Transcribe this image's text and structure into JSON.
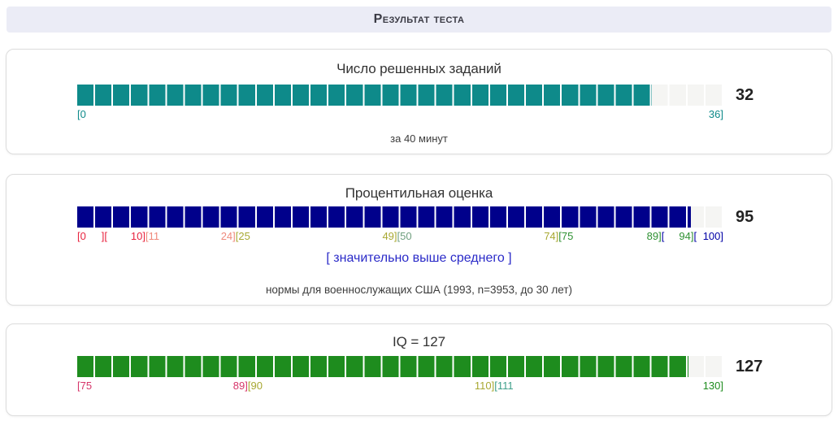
{
  "header": {
    "title": "Результат теста"
  },
  "panels": [
    {
      "id": "tasks",
      "title": "Число решенных заданий",
      "value": "32",
      "bar": {
        "fill_percent": 88.89,
        "fill_color": "#0e8a8a",
        "empty_color": "#f5f5f3",
        "segments": 36
      },
      "scale": [
        {
          "pos": 0,
          "anchor": "left",
          "parts": [
            {
              "text": "[0",
              "color": "#0e8a8a"
            }
          ]
        },
        {
          "pos": 100,
          "anchor": "right",
          "parts": [
            {
              "text": "36]",
              "color": "#0e8a8a"
            }
          ]
        }
      ],
      "footnote": "за 40 минут"
    },
    {
      "id": "percentile",
      "title": "Процентильная оценка",
      "value": "95",
      "bar": {
        "fill_percent": 95,
        "fill_color": "#00008b",
        "empty_color": "#f5f5f3",
        "segments": 36
      },
      "scale": [
        {
          "pos": 0,
          "anchor": "left",
          "parts": [
            {
              "text": "[0",
              "color": "#e8233f"
            }
          ]
        },
        {
          "pos": 4.2,
          "anchor": "center",
          "parts": [
            {
              "text": "][",
              "color": "#e8233f"
            }
          ]
        },
        {
          "pos": 10.5,
          "anchor": "center",
          "parts": [
            {
              "text": "10]",
              "color": "#e8233f"
            },
            {
              "text": "[11",
              "color": "#ef8a7c"
            }
          ]
        },
        {
          "pos": 24.5,
          "anchor": "center",
          "parts": [
            {
              "text": "24]",
              "color": "#ef8a7c"
            },
            {
              "text": "[25",
              "color": "#a8a832"
            }
          ]
        },
        {
          "pos": 49.5,
          "anchor": "center",
          "parts": [
            {
              "text": "49]",
              "color": "#a8a832"
            },
            {
              "text": "[50",
              "color": "#6f9f7f"
            }
          ]
        },
        {
          "pos": 74.5,
          "anchor": "center",
          "parts": [
            {
              "text": "74]",
              "color": "#a8a832"
            },
            {
              "text": "[75",
              "color": "#2e9132"
            }
          ]
        },
        {
          "pos": 89.5,
          "anchor": "center",
          "parts": [
            {
              "text": "89]",
              "color": "#2e9132"
            },
            {
              "text": "[",
              "color": "#0000a6"
            }
          ]
        },
        {
          "pos": 94.5,
          "anchor": "center",
          "parts": [
            {
              "text": "94]",
              "color": "#2e9132"
            },
            {
              "text": "[",
              "color": "#0000a6"
            }
          ]
        },
        {
          "pos": 100,
          "anchor": "right",
          "parts": [
            {
              "text": "100]",
              "color": "#0000a6"
            }
          ]
        }
      ],
      "verdict": "[ значительно выше среднего ]",
      "footnote": "нормы для военнослужащих США (1993, n=3953, до 30 лет)"
    },
    {
      "id": "iq",
      "title": "IQ = 127",
      "value": "127",
      "bar": {
        "fill_percent": 94.55,
        "fill_color": "#1e8c1e",
        "empty_color": "#f5f5f3",
        "segments": 36
      },
      "scale": [
        {
          "pos": 0,
          "anchor": "left",
          "parts": [
            {
              "text": "[75",
              "color": "#d6356a"
            }
          ]
        },
        {
          "pos": 26.4,
          "anchor": "center",
          "parts": [
            {
              "text": "89]",
              "color": "#d6356a"
            },
            {
              "text": "[90",
              "color": "#a8a832"
            }
          ]
        },
        {
          "pos": 64.5,
          "anchor": "center",
          "parts": [
            {
              "text": "110]",
              "color": "#a8a832"
            },
            {
              "text": "[111",
              "color": "#3fa08b"
            }
          ]
        },
        {
          "pos": 100,
          "anchor": "right",
          "parts": [
            {
              "text": "130]",
              "color": "#1e8c1e"
            }
          ]
        }
      ]
    }
  ],
  "chart_data": [
    {
      "type": "bar",
      "title": "Число решенных заданий",
      "value": 32,
      "range": [
        0,
        36
      ],
      "segments": 36,
      "bar_color": "#0e8a8a",
      "tick_labels": [
        "[0",
        "36]"
      ],
      "note": "за 40 минут"
    },
    {
      "type": "bar",
      "title": "Процентильная оценка",
      "value": 95,
      "range": [
        0,
        100
      ],
      "band_boundaries": [
        0,
        10,
        11,
        24,
        25,
        49,
        50,
        74,
        75,
        89,
        94,
        100
      ],
      "bar_color": "#00008b",
      "tick_labels": [
        "[0",
        "][",
        "10][11",
        "24][25",
        "49][50",
        "74][75",
        "89][",
        "94][",
        "100]"
      ],
      "verdict": "[ значительно выше среднего ]",
      "note": "нормы для военнослужащих США (1993, n=3953, до 30 лет)"
    },
    {
      "type": "bar",
      "title": "IQ = 127",
      "value": 127,
      "range": [
        75,
        130
      ],
      "band_boundaries": [
        75,
        89,
        90,
        110,
        111,
        130
      ],
      "bar_color": "#1e8c1e",
      "tick_labels": [
        "[75",
        "89][90",
        "110][111",
        "130]"
      ]
    }
  ]
}
